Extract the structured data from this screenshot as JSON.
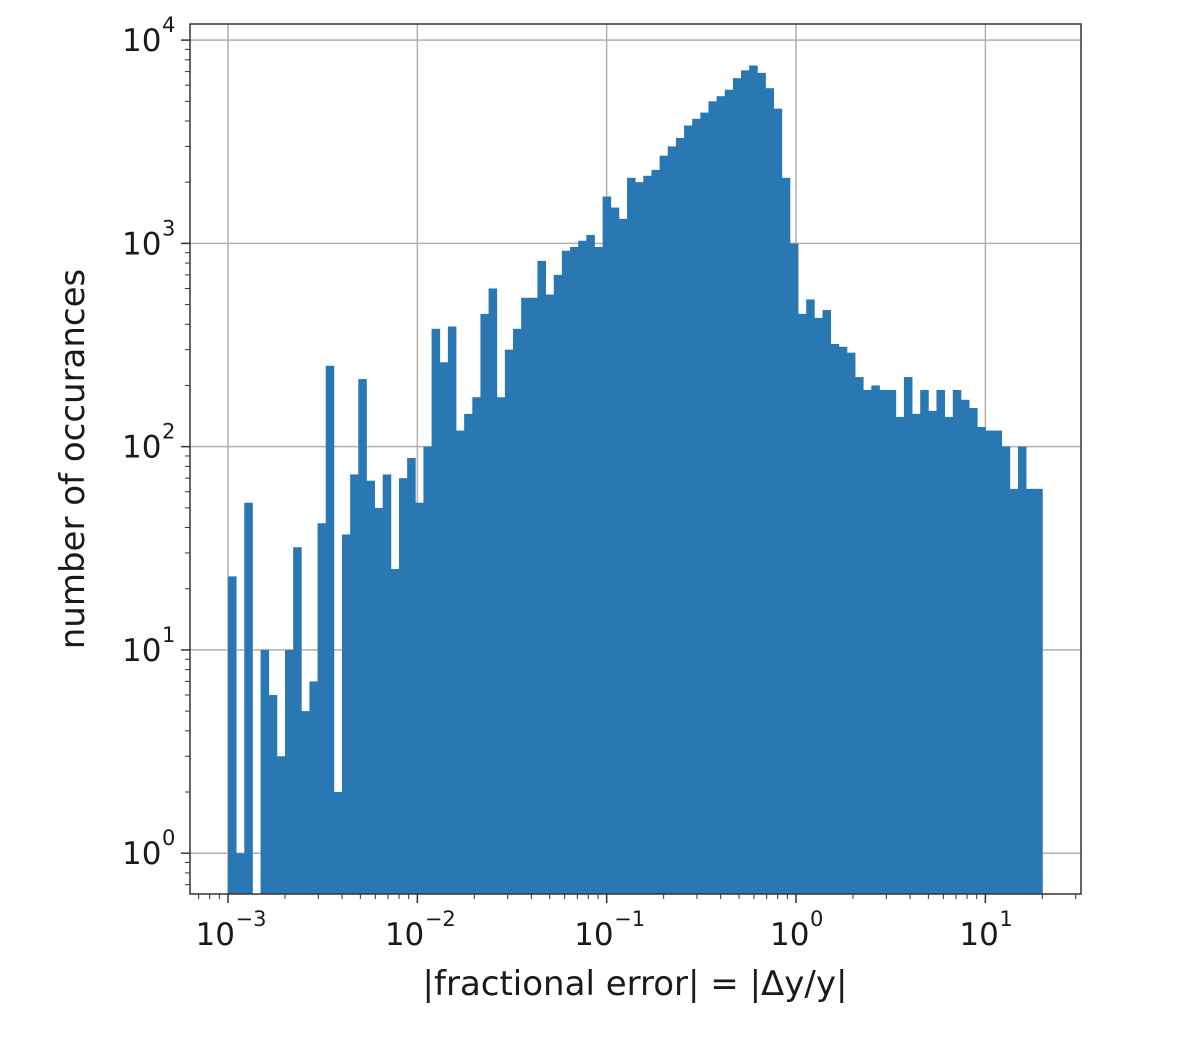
{
  "chart_data": {
    "type": "bar",
    "style": "histogram",
    "xlabel": "|fractional error| = |Δy/y|",
    "ylabel": "number of occurances",
    "xscale": "log",
    "yscale": "log",
    "xlim": [
      0.00063,
      32
    ],
    "ylim": [
      0.63,
      12000
    ],
    "grid": true,
    "bar_color": "#2a78b3",
    "x_ticks": [
      {
        "base": "10",
        "exp": "−3",
        "value": 0.001
      },
      {
        "base": "10",
        "exp": "−2",
        "value": 0.01
      },
      {
        "base": "10",
        "exp": "−1",
        "value": 0.1
      },
      {
        "base": "10",
        "exp": "0",
        "value": 1
      },
      {
        "base": "10",
        "exp": "1",
        "value": 10
      }
    ],
    "y_ticks": [
      {
        "base": "10",
        "exp": "0",
        "value": 1
      },
      {
        "base": "10",
        "exp": "1",
        "value": 10
      },
      {
        "base": "10",
        "exp": "2",
        "value": 100
      },
      {
        "base": "10",
        "exp": "3",
        "value": 1000
      },
      {
        "base": "10",
        "exp": "4",
        "value": 10000
      }
    ],
    "bin_range": [
      0.001,
      20
    ],
    "counts": [
      23,
      1,
      53,
      0,
      10,
      6,
      3,
      10,
      32,
      5,
      7,
      42,
      250,
      2,
      37,
      73,
      215,
      68,
      50,
      73,
      25,
      70,
      88,
      53,
      100,
      380,
      260,
      390,
      120,
      145,
      175,
      450,
      600,
      175,
      300,
      380,
      540,
      540,
      820,
      560,
      700,
      920,
      960,
      1030,
      1100,
      960,
      1700,
      1500,
      1320,
      2100,
      2000,
      2150,
      2300,
      2700,
      3000,
      3300,
      3800,
      4100,
      4400,
      5000,
      5300,
      5700,
      6500,
      7100,
      7500,
      6900,
      5800,
      4600,
      2100,
      1000,
      450,
      530,
      430,
      470,
      320,
      310,
      290,
      220,
      190,
      200,
      190,
      190,
      140,
      220,
      145,
      190,
      150,
      190,
      140,
      190,
      170,
      155,
      125,
      120,
      120,
      100,
      62,
      100,
      62,
      62
    ]
  }
}
